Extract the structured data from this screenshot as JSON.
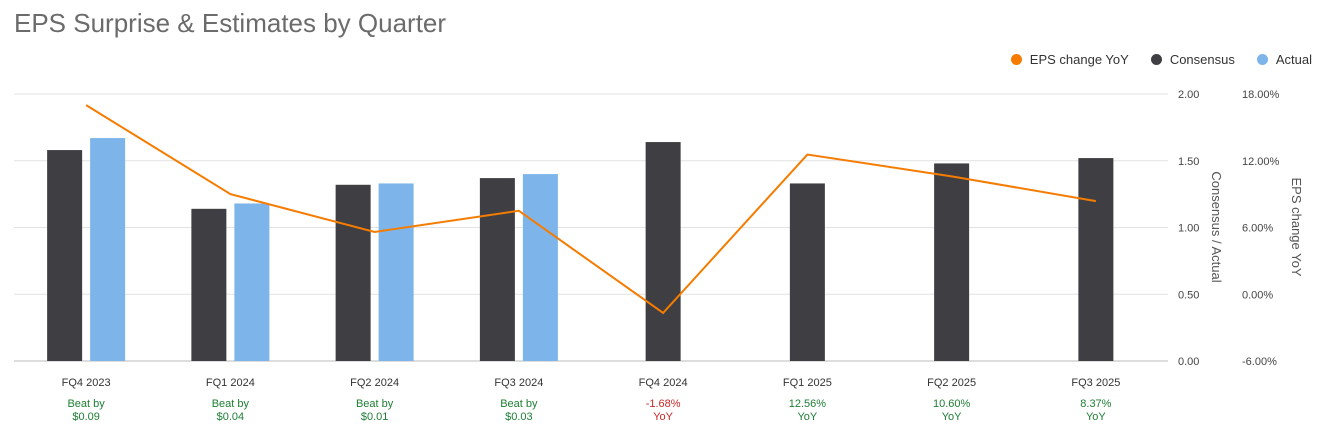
{
  "title": "EPS Surprise & Estimates by Quarter",
  "legend": [
    {
      "label": "EPS change YoY",
      "color": "#f57c00"
    },
    {
      "label": "Consensus",
      "color": "#3f3f43"
    },
    {
      "label": "Actual",
      "color": "#7db4ea"
    }
  ],
  "chart_data": {
    "type": "bar",
    "title": "EPS Surprise & Estimates by Quarter",
    "categories": [
      "FQ4 2023",
      "FQ1 2024",
      "FQ2 2024",
      "FQ3 2024",
      "FQ4 2024",
      "FQ1 2025",
      "FQ2 2025",
      "FQ3 2025"
    ],
    "series": [
      {
        "name": "Consensus",
        "type": "bar",
        "axis": "left",
        "color": "#3f3f43",
        "values": [
          1.58,
          1.14,
          1.32,
          1.37,
          1.64,
          1.33,
          1.48,
          1.52
        ]
      },
      {
        "name": "Actual",
        "type": "bar",
        "axis": "left",
        "color": "#7db4ea",
        "values": [
          1.67,
          1.18,
          1.33,
          1.4,
          null,
          null,
          null,
          null
        ]
      },
      {
        "name": "EPS change YoY",
        "type": "line",
        "axis": "right",
        "color": "#f57c00",
        "values": [
          17.0,
          9.0,
          5.6,
          7.5,
          -1.68,
          12.56,
          10.6,
          8.37
        ]
      }
    ],
    "ylabel": "Consensus / Actual",
    "ylim": [
      0,
      2
    ],
    "yticks": [
      "0.00",
      "0.50",
      "1.00",
      "1.50",
      "2.00"
    ],
    "y2label": "EPS change YoY",
    "y2lim": [
      -6,
      18
    ],
    "y2ticks": [
      "-6.00%",
      "0.00%",
      "6.00%",
      "12.00%",
      "18.00%"
    ],
    "grid": true,
    "legend_position": "top-right",
    "annotations": [
      {
        "line1": "Beat by",
        "line2": "$0.09",
        "color": "#1e7e34"
      },
      {
        "line1": "Beat by",
        "line2": "$0.04",
        "color": "#1e7e34"
      },
      {
        "line1": "Beat by",
        "line2": "$0.01",
        "color": "#1e7e34"
      },
      {
        "line1": "Beat by",
        "line2": "$0.03",
        "color": "#1e7e34"
      },
      {
        "line1": "-1.68%",
        "line2": "YoY",
        "color": "#c62828"
      },
      {
        "line1": "12.56%",
        "line2": "YoY",
        "color": "#1e7e34"
      },
      {
        "line1": "10.60%",
        "line2": "YoY",
        "color": "#1e7e34"
      },
      {
        "line1": "8.37%",
        "line2": "YoY",
        "color": "#1e7e34"
      }
    ]
  }
}
